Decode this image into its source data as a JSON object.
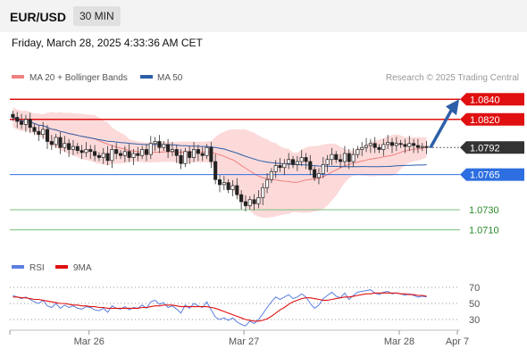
{
  "header": {
    "pair": "EUR/USD",
    "timeframe": "30 MIN",
    "datetime": "Friday, March 28, 2025 4:33:36 AM CET"
  },
  "chart_data": [
    {
      "type": "candlestick",
      "legend": [
        {
          "name": "MA 20 + Bollinger Bands",
          "color": "#f08080"
        },
        {
          "name": "MA 50",
          "color": "#2d5fa8"
        }
      ],
      "source": "Research © 2025 Trading Central",
      "ylim": [
        1.069,
        1.085
      ],
      "levels": [
        {
          "value": 1.084,
          "label": "1.0840",
          "kind": "resistance",
          "color": "#e01010"
        },
        {
          "value": 1.082,
          "label": "1.0820",
          "kind": "resistance",
          "color": "#e01010"
        },
        {
          "value": 1.0792,
          "label": "1.0792",
          "kind": "current",
          "color": "#333333"
        },
        {
          "value": 1.0765,
          "label": "1.0765",
          "kind": "pivot",
          "color": "#2d6fe0"
        },
        {
          "value": 1.073,
          "label": "1.0730",
          "kind": "support",
          "color": "#2a8a2a"
        },
        {
          "value": 1.071,
          "label": "1.0710",
          "kind": "support",
          "color": "#2a8a2a"
        }
      ],
      "x_ticks": [
        "Mar 26",
        "Mar 27",
        "Mar 28",
        "Apr 7"
      ],
      "close": [
        1.0822,
        1.0818,
        1.0815,
        1.082,
        1.0812,
        1.0808,
        1.0805,
        1.081,
        1.0798,
        1.0795,
        1.0802,
        1.0792,
        1.0796,
        1.079,
        1.0793,
        1.0789,
        1.0787,
        1.079,
        1.0788,
        1.0784,
        1.0782,
        1.0786,
        1.0779,
        1.079,
        1.0786,
        1.0784,
        1.0788,
        1.0782,
        1.0786,
        1.0784,
        1.079,
        1.0785,
        1.0796,
        1.0798,
        1.0792,
        1.0795,
        1.0788,
        1.079,
        1.0784,
        1.0776,
        1.0788,
        1.0782,
        1.079,
        1.0786,
        1.0784,
        1.0792,
        1.0778,
        1.076,
        1.0755,
        1.0757,
        1.075,
        1.0754,
        1.0745,
        1.0738,
        1.0734,
        1.074,
        1.0736,
        1.0742,
        1.0752,
        1.076,
        1.0768,
        1.0774,
        1.0772,
        1.0776,
        1.078,
        1.0775,
        1.0778,
        1.0782,
        1.0778,
        1.077,
        1.0762,
        1.0766,
        1.0775,
        1.078,
        1.0785,
        1.078,
        1.0778,
        1.0786,
        1.0778,
        1.0785,
        1.079,
        1.0792,
        1.0794,
        1.0796,
        1.0792,
        1.079,
        1.0795,
        1.0797,
        1.0794,
        1.0796,
        1.0795,
        1.0793,
        1.0796,
        1.0794,
        1.0792,
        1.0793,
        1.0792
      ],
      "forecast": {
        "from": 1.0792,
        "to": 1.084,
        "direction": "up"
      }
    },
    {
      "type": "line",
      "legend": [
        {
          "name": "RSI",
          "color": "#5b7fe0"
        },
        {
          "name": "9MA",
          "color": "#e01010"
        }
      ],
      "ylim": [
        20,
        80
      ],
      "y_ticks": [
        70,
        50,
        30
      ],
      "rsi": [
        60,
        58,
        56,
        58,
        55,
        52,
        50,
        54,
        47,
        45,
        50,
        44,
        48,
        45,
        47,
        44,
        43,
        46,
        45,
        42,
        41,
        44,
        39,
        47,
        44,
        43,
        46,
        42,
        45,
        44,
        48,
        44,
        52,
        54,
        49,
        51,
        45,
        47,
        43,
        38,
        48,
        44,
        50,
        47,
        45,
        52,
        42,
        33,
        30,
        32,
        29,
        32,
        27,
        24,
        22,
        28,
        25,
        30,
        37,
        45,
        52,
        58,
        55,
        58,
        61,
        56,
        58,
        62,
        58,
        50,
        44,
        48,
        56,
        60,
        64,
        59,
        57,
        63,
        55,
        60,
        64,
        65,
        66,
        67,
        63,
        61,
        64,
        65,
        62,
        63,
        62,
        60,
        62,
        60,
        58,
        59,
        58
      ],
      "ma": [
        58,
        58,
        57,
        57,
        56,
        55,
        55,
        54,
        53,
        52,
        51,
        50,
        50,
        49,
        48,
        48,
        47,
        47,
        46,
        46,
        45,
        45,
        44,
        44,
        44,
        44,
        44,
        44,
        44,
        44,
        45,
        45,
        46,
        47,
        47,
        48,
        48,
        48,
        47,
        46,
        46,
        46,
        46,
        46,
        46,
        46,
        45,
        44,
        42,
        40,
        38,
        36,
        34,
        32,
        30,
        29,
        28,
        28,
        29,
        31,
        34,
        38,
        42,
        45,
        49,
        52,
        54,
        56,
        57,
        57,
        56,
        55,
        54,
        54,
        55,
        56,
        57,
        58,
        58,
        59,
        60,
        61,
        62,
        62,
        63,
        63,
        63,
        63,
        63,
        63,
        62,
        62,
        61,
        61,
        60,
        60,
        59
      ]
    }
  ]
}
